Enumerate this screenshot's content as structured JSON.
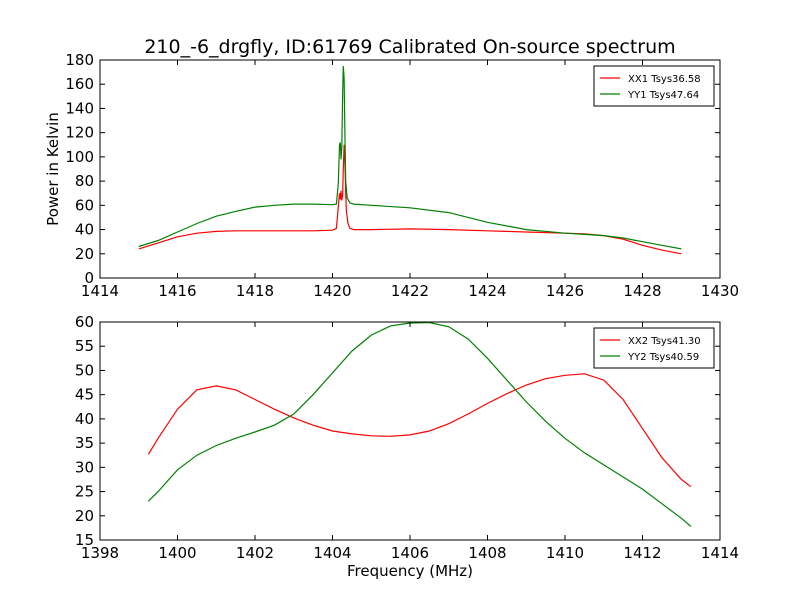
{
  "title": "210_-6_drgfly, ID:61769 Calibrated On-source spectrum",
  "colors": {
    "xx": "#ff0000",
    "yy": "#008000"
  },
  "chart_data": [
    {
      "type": "line",
      "xlabel": "",
      "ylabel": "Power in Kelvin",
      "xlim": [
        1414,
        1430
      ],
      "ylim": [
        0,
        180
      ],
      "xticks": [
        1414,
        1416,
        1418,
        1420,
        1422,
        1424,
        1426,
        1428,
        1430
      ],
      "yticks": [
        0,
        20,
        40,
        60,
        80,
        100,
        120,
        140,
        160,
        180
      ],
      "legend_position": "top-right",
      "series": [
        {
          "name": "XX1 Tsys36.58",
          "color": "#ff0000",
          "x": [
            1415.0,
            1415.5,
            1416.0,
            1416.5,
            1417.0,
            1417.5,
            1418.0,
            1418.5,
            1419.0,
            1419.5,
            1420.0,
            1420.1,
            1420.18,
            1420.2,
            1420.22,
            1420.24,
            1420.26,
            1420.28,
            1420.3,
            1420.32,
            1420.34,
            1420.36,
            1420.4,
            1420.45,
            1420.55,
            1421.0,
            1422.0,
            1423.0,
            1424.0,
            1425.0,
            1426.0,
            1426.5,
            1427.0,
            1427.5,
            1428.0,
            1428.5,
            1429.0
          ],
          "y": [
            24,
            29,
            34,
            37,
            38.5,
            39,
            39,
            39,
            39,
            39,
            39.5,
            41,
            70,
            65,
            72,
            64,
            68,
            90,
            110,
            95,
            70,
            55,
            45,
            41,
            40,
            40,
            40.5,
            40,
            39,
            38,
            37,
            36.5,
            35,
            32,
            27,
            23,
            20
          ]
        },
        {
          "name": "YY1 Tsys47.64",
          "color": "#008000",
          "x": [
            1415.0,
            1415.5,
            1416.0,
            1416.5,
            1417.0,
            1417.5,
            1418.0,
            1418.5,
            1419.0,
            1419.5,
            1420.0,
            1420.1,
            1420.15,
            1420.18,
            1420.2,
            1420.22,
            1420.24,
            1420.26,
            1420.28,
            1420.3,
            1420.32,
            1420.34,
            1420.38,
            1420.45,
            1420.55,
            1421.0,
            1422.0,
            1423.0,
            1424.0,
            1425.0,
            1426.0,
            1426.5,
            1427.0,
            1427.5,
            1428.0,
            1428.5,
            1429.0
          ],
          "y": [
            26,
            31,
            38,
            45,
            51,
            55,
            58.5,
            60,
            61,
            61,
            60.5,
            61,
            78,
            110,
            112,
            98,
            108,
            150,
            175,
            165,
            120,
            80,
            66,
            62,
            61,
            60,
            58,
            54,
            46,
            40,
            37,
            36,
            35,
            33,
            30,
            27,
            24
          ]
        }
      ]
    },
    {
      "type": "line",
      "xlabel": "Frequency (MHz)",
      "ylabel": "",
      "xlim": [
        1398,
        1414
      ],
      "ylim": [
        15,
        60
      ],
      "xticks": [
        1398,
        1400,
        1402,
        1404,
        1406,
        1408,
        1410,
        1412,
        1414
      ],
      "yticks": [
        15,
        20,
        25,
        30,
        35,
        40,
        45,
        50,
        55,
        60
      ],
      "legend_position": "top-right",
      "series": [
        {
          "name": "XX2 Tsys41.30",
          "color": "#ff0000",
          "x": [
            1399.25,
            1399.5,
            1400.0,
            1400.5,
            1401.0,
            1401.5,
            1402.0,
            1402.5,
            1403.0,
            1403.5,
            1404.0,
            1404.5,
            1405.0,
            1405.5,
            1406.0,
            1406.5,
            1407.0,
            1407.5,
            1408.0,
            1408.5,
            1409.0,
            1409.5,
            1410.0,
            1410.5,
            1411.0,
            1411.5,
            1412.0,
            1412.5,
            1413.0,
            1413.25
          ],
          "y": [
            32.7,
            36,
            42,
            46,
            46.8,
            46,
            44,
            42,
            40.2,
            38.7,
            37.5,
            36.9,
            36.5,
            36.4,
            36.7,
            37.5,
            39,
            41,
            43.2,
            45.2,
            47,
            48.3,
            49,
            49.3,
            48,
            44,
            38,
            32,
            27.5,
            26
          ]
        },
        {
          "name": "YY2 Tsys40.59",
          "color": "#008000",
          "x": [
            1399.25,
            1399.5,
            1400.0,
            1400.5,
            1401.0,
            1401.5,
            1402.0,
            1402.5,
            1403.0,
            1403.5,
            1404.0,
            1404.5,
            1405.0,
            1405.5,
            1406.0,
            1406.5,
            1407.0,
            1407.5,
            1408.0,
            1408.5,
            1409.0,
            1409.5,
            1410.0,
            1410.5,
            1411.0,
            1411.5,
            1412.0,
            1412.5,
            1413.0,
            1413.25
          ],
          "y": [
            23,
            25,
            29.5,
            32.5,
            34.5,
            36,
            37.3,
            38.7,
            41,
            45,
            49.5,
            54,
            57.3,
            59.2,
            59.8,
            59.9,
            59,
            56.5,
            52.5,
            48,
            43.5,
            39.5,
            36,
            33,
            30.5,
            28,
            25.5,
            22.5,
            19.5,
            17.8
          ]
        }
      ]
    }
  ]
}
